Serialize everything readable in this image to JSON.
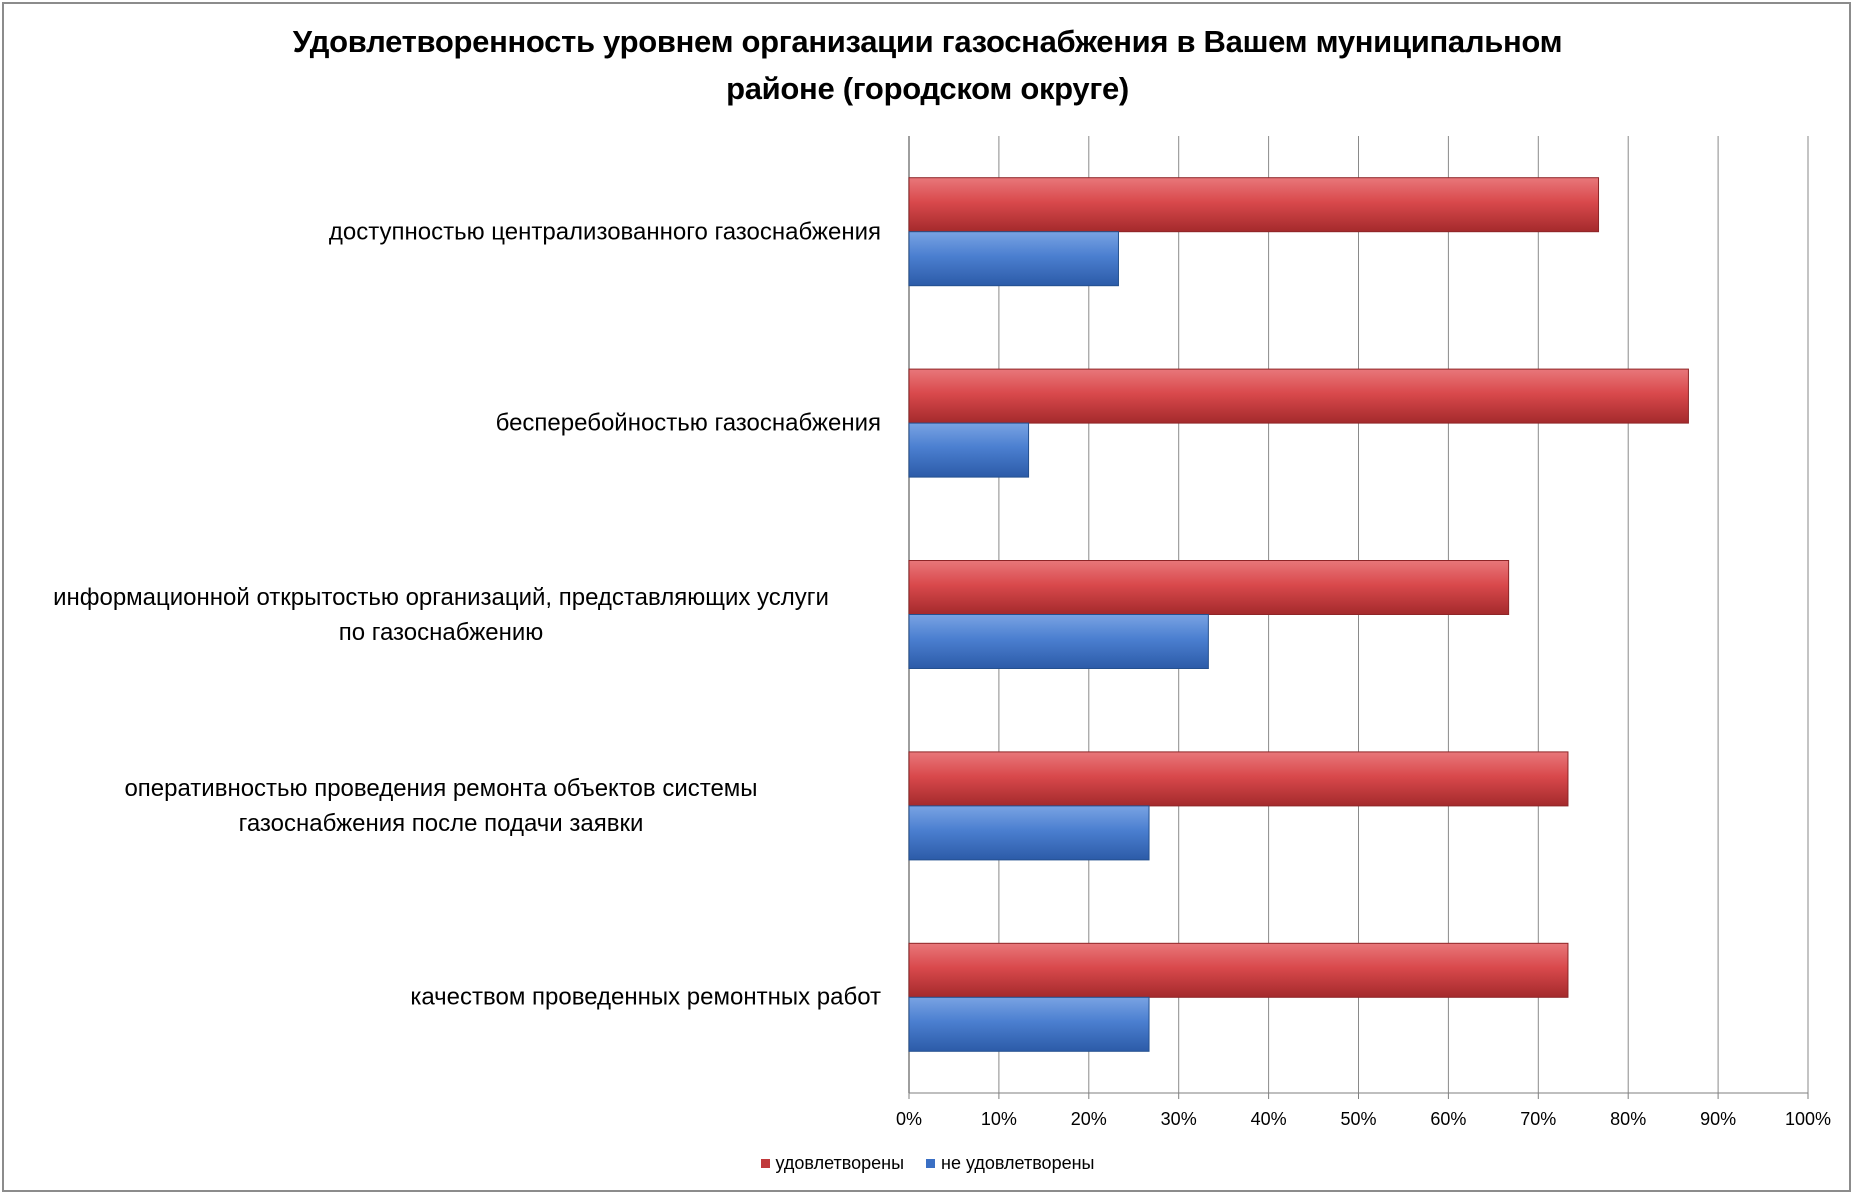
{
  "chart_data": {
    "type": "bar",
    "orientation": "horizontal",
    "title": "Удовлетворенность уровнем организации газоснабжения в Вашем муниципальном районе (городском округе)",
    "title_lines": [
      "Удовлетворенность уровнем организации газоснабжения в Вашем муниципальном",
      "районе (городском округе)"
    ],
    "categories": [
      [
        "доступностью централизованного газоснабжения"
      ],
      [
        "бесперебойностью  газоснабжения"
      ],
      [
        "информационной открытостью организаций, представляющих услуги",
        "по газоснабжению"
      ],
      [
        "оперативностью проведения ремонта объектов системы",
        "газоснабжения после подачи заявки"
      ],
      [
        "качеством проведенных ремонтных работ"
      ]
    ],
    "series": [
      {
        "name": "удовлетворены",
        "color": "#c0393b",
        "values": [
          76.7,
          86.7,
          66.7,
          73.3,
          73.3
        ]
      },
      {
        "name": "не удовлетворены",
        "color": "#3a6fc4",
        "values": [
          23.3,
          13.3,
          33.3,
          26.7,
          26.7
        ]
      }
    ],
    "xlim": [
      0,
      100
    ],
    "x_ticks": [
      "0%",
      "10%",
      "20%",
      "30%",
      "40%",
      "50%",
      "60%",
      "70%",
      "80%",
      "90%",
      "100%"
    ],
    "grid": true,
    "legend_position": "bottom"
  }
}
